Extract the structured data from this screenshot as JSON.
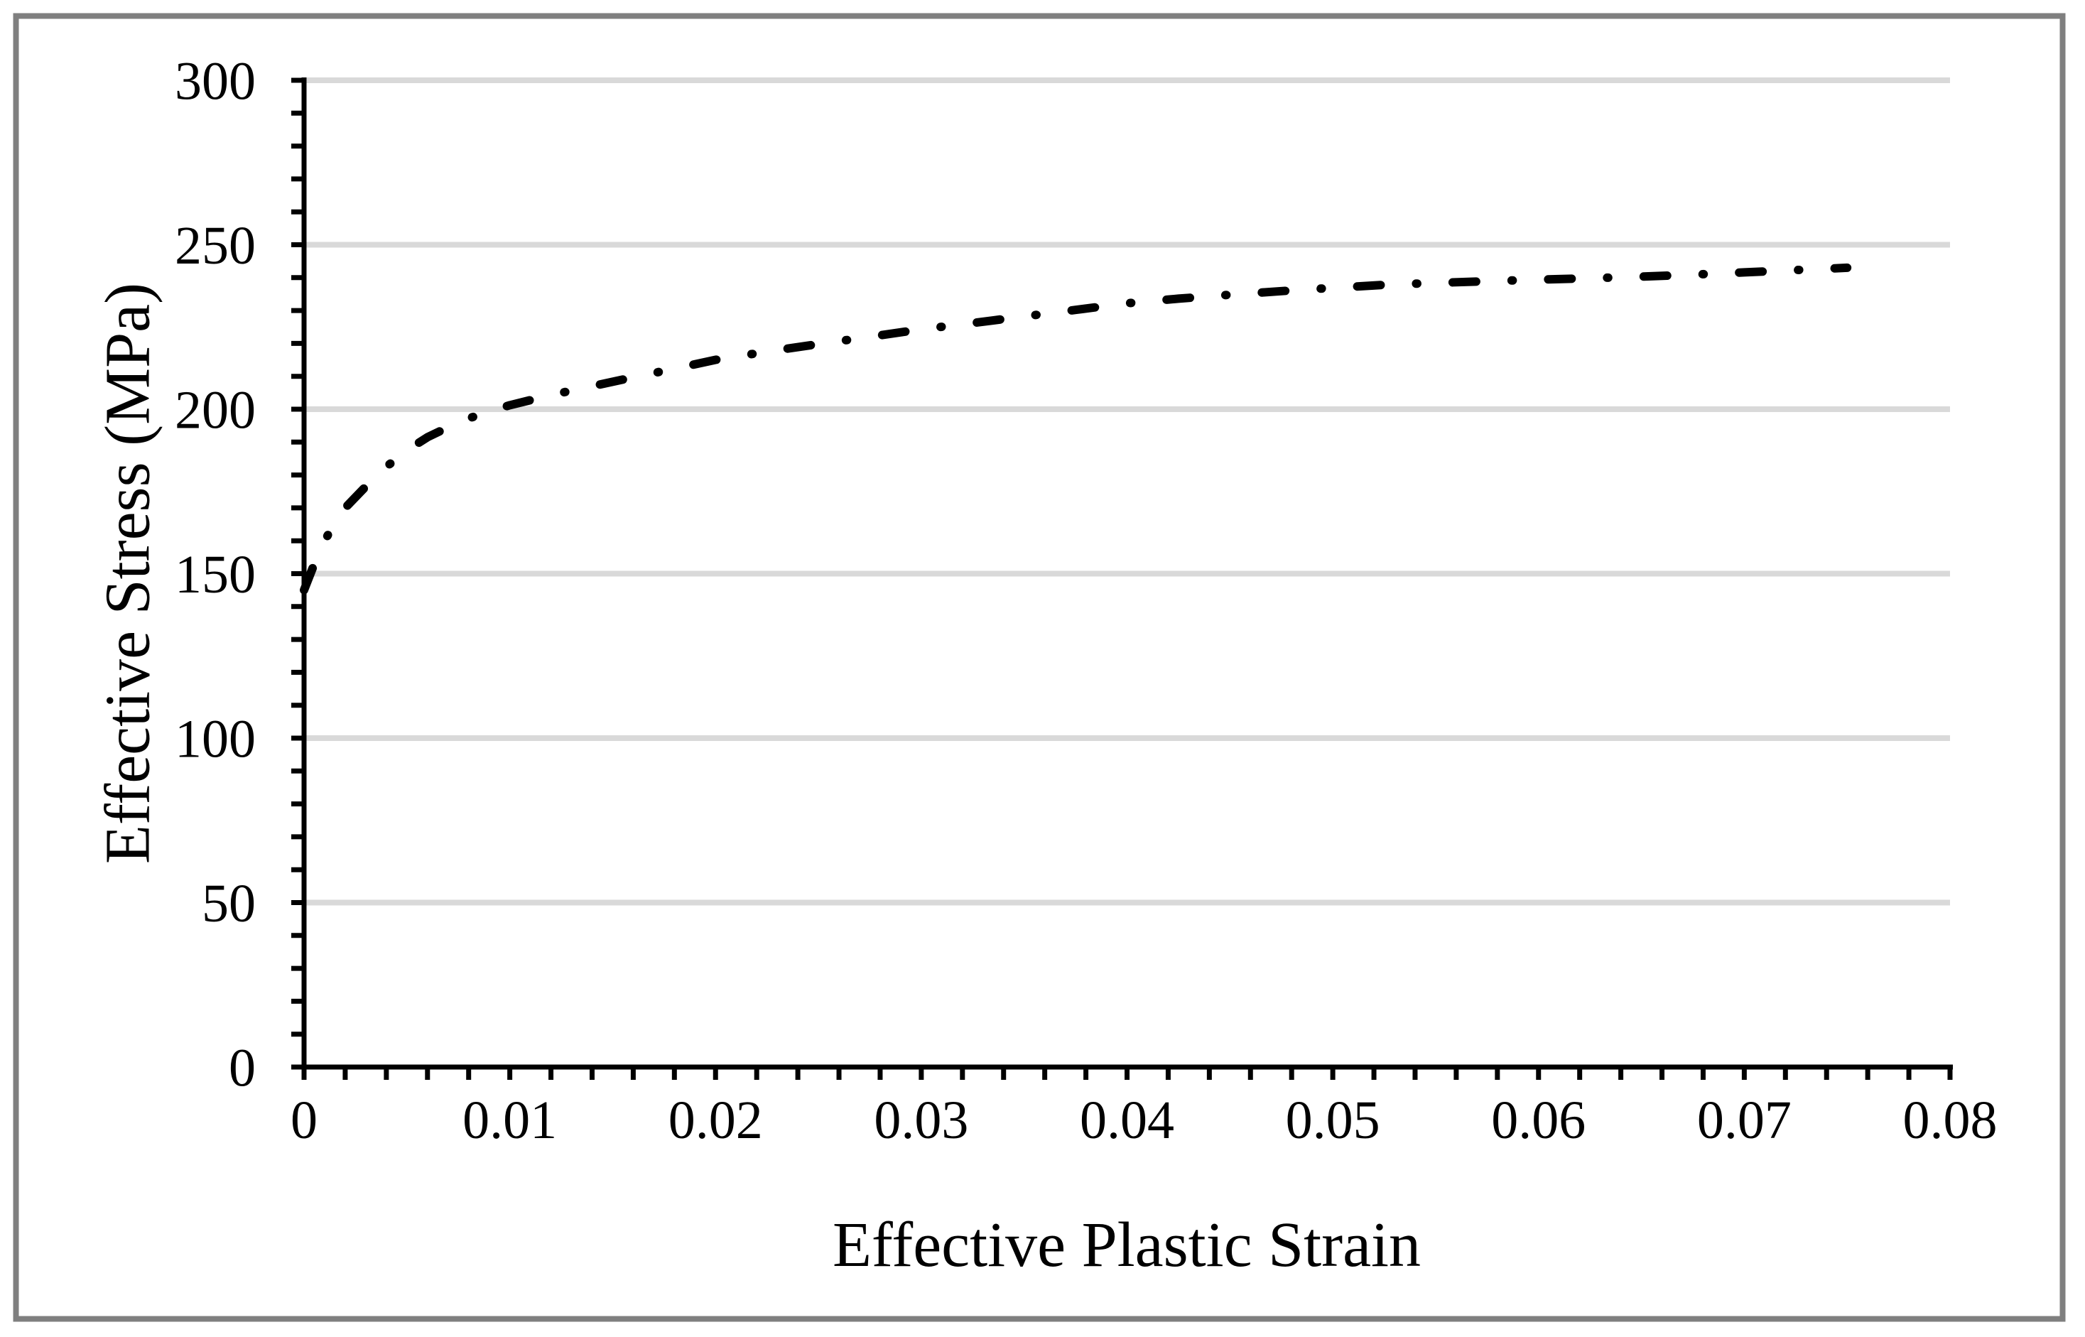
{
  "chart_data": {
    "type": "line",
    "title": "",
    "xlabel": "Effective Plastic Strain",
    "ylabel": "Effective Stress (MPa)",
    "xlim": [
      0,
      0.08
    ],
    "ylim": [
      0,
      300
    ],
    "x_tick_values": [
      0,
      0.01,
      0.02,
      0.03,
      0.04,
      0.05,
      0.06,
      0.07,
      0.08
    ],
    "x_tick_labels": [
      "0",
      "0.01",
      "0.02",
      "0.03",
      "0.04",
      "0.05",
      "0.06",
      "0.07",
      "0.08"
    ],
    "x_minor_tick_step": 0.002,
    "y_tick_values": [
      0,
      50,
      100,
      150,
      200,
      250,
      300
    ],
    "y_tick_labels": [
      "0",
      "50",
      "100",
      "150",
      "200",
      "250",
      "300"
    ],
    "y_minor_tick_step": 10,
    "grid": "horizontal-major-only",
    "legend_position": "none",
    "line_style": "dash-dot",
    "colors": {
      "line": "#000000",
      "grid": "#d9d9d9",
      "axis": "#000000",
      "border": "#7f7f7f",
      "background": "#ffffff"
    },
    "series": [
      {
        "x": [
          0,
          0.0005,
          0.001,
          0.0015,
          0.002,
          0.003,
          0.004,
          0.005,
          0.006,
          0.007,
          0.008,
          0.009,
          0.01,
          0.012,
          0.014,
          0.016,
          0.018,
          0.02,
          0.0225,
          0.025,
          0.0275,
          0.03,
          0.0325,
          0.035,
          0.0375,
          0.04,
          0.0425,
          0.045,
          0.0475,
          0.05,
          0.0525,
          0.055,
          0.0575,
          0.06,
          0.0625,
          0.065,
          0.0675,
          0.07,
          0.0725,
          0.075
        ],
        "y": [
          145,
          153,
          160,
          165.5,
          170,
          176.5,
          182.5,
          187.5,
          191.5,
          194.5,
          197.2,
          199.3,
          201.2,
          204.3,
          207,
          209.7,
          212.3,
          215,
          217.5,
          219.8,
          222,
          224.3,
          226.2,
          228.2,
          230.2,
          232.2,
          233.6,
          234.8,
          235.9,
          236.9,
          237.8,
          238.4,
          238.9,
          239.4,
          239.8,
          240.3,
          240.9,
          241.6,
          242.3,
          243
        ]
      }
    ]
  }
}
